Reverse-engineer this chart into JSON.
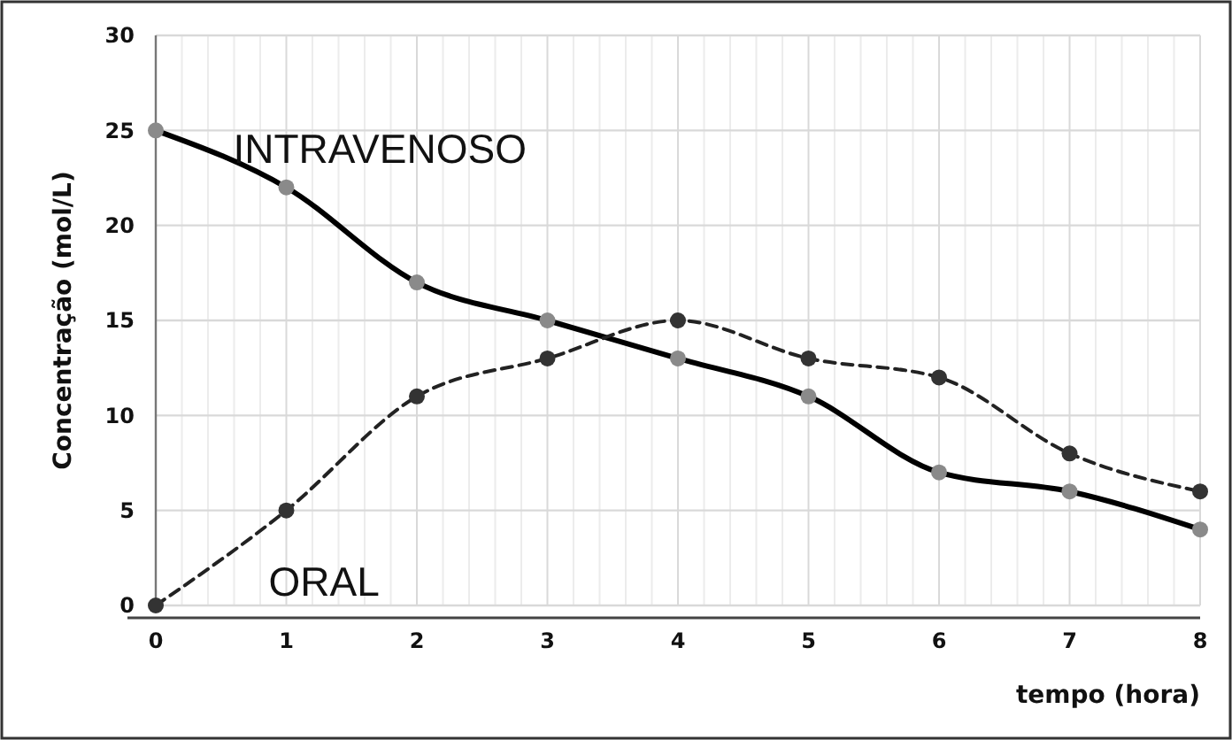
{
  "chart_data": {
    "type": "line",
    "xlabel": "tempo (hora)",
    "ylabel": "Concentração (mol/L)",
    "x": [
      0,
      1,
      2,
      3,
      4,
      5,
      6,
      7,
      8
    ],
    "series": [
      {
        "name": "INTRAVENOSO",
        "color": "#000000",
        "values": [
          25,
          22,
          17,
          15,
          13,
          11,
          7,
          6,
          4
        ],
        "line_style": "solid"
      },
      {
        "name": "ORAL",
        "color": "#222222",
        "values": [
          0,
          5,
          11,
          13,
          15,
          13,
          12,
          8,
          6
        ],
        "line_style": "dashed"
      }
    ],
    "xlim": [
      0,
      8
    ],
    "xticks": [
      0,
      {
        "value": 0.2,
        "label": null
      },
      {
        "value": 0.4,
        "label": null
      },
      {
        "value": 0.6,
        "label": null
      },
      {
        "value": 0.8,
        "label": null
      },
      1,
      {
        "value": 1.2,
        "label": null
      },
      {
        "value": 1.4,
        "label": null
      },
      {
        "value": 1.6,
        "label": null
      },
      {
        "value": 1.8,
        "label": null
      },
      2,
      {
        "value": 2.2,
        "label": null
      },
      {
        "value": 2.4,
        "label": null
      },
      {
        "value": 2.6,
        "label": null
      },
      {
        "value": 2.8,
        "label": null
      },
      3,
      {
        "value": 3.2,
        "label": null
      },
      {
        "value": 3.4,
        "label": null
      },
      {
        "value": 3.6,
        "label": null
      },
      {
        "value": 3.8,
        "label": null
      },
      4,
      {
        "value": 4.2,
        "label": null
      },
      {
        "value": 4.4,
        "label": null
      },
      {
        "value": 4.6,
        "label": null
      },
      {
        "value": 4.8,
        "label": null
      },
      5,
      {
        "value": 5.2,
        "label": null
      },
      {
        "value": 5.4,
        "label": null
      },
      {
        "value": 5.6,
        "label": null
      },
      {
        "value": 5.8,
        "label": null
      },
      6,
      {
        "value": 6.2,
        "label": null
      },
      {
        "value": 6.4,
        "label": null
      },
      {
        "value": 6.6,
        "label": null
      },
      {
        "value": 6.8,
        "label": null
      },
      7,
      {
        "value": 7.2,
        "label": null
      },
      {
        "value": 7.4,
        "label": null
      },
      {
        "value": 7.6,
        "label": null
      },
      {
        "value": 7.8,
        "label": null
      },
      8
    ],
    "ylim": [
      0,
      30
    ],
    "yticks": [
      0,
      5,
      10,
      15,
      20,
      25,
      30
    ],
    "grid": true,
    "marker": "circle"
  }
}
